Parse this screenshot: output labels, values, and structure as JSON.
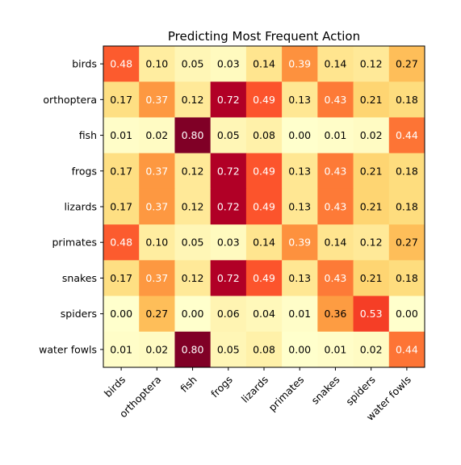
{
  "chart_data": {
    "type": "heatmap",
    "title": "Predicting Most Frequent Action",
    "xlabel": "",
    "ylabel": "",
    "rows": [
      "birds",
      "orthoptera",
      "fish",
      "frogs",
      "lizards",
      "primates",
      "snakes",
      "spiders",
      "water fowls"
    ],
    "columns": [
      "birds",
      "orthoptera",
      "fish",
      "frogs",
      "lizards",
      "primates",
      "snakes",
      "spiders",
      "water fowls"
    ],
    "values": [
      [
        0.48,
        0.1,
        0.05,
        0.03,
        0.14,
        0.39,
        0.14,
        0.12,
        0.27
      ],
      [
        0.17,
        0.37,
        0.12,
        0.72,
        0.49,
        0.13,
        0.43,
        0.21,
        0.18
      ],
      [
        0.01,
        0.02,
        0.8,
        0.05,
        0.08,
        0.0,
        0.01,
        0.02,
        0.44
      ],
      [
        0.17,
        0.37,
        0.12,
        0.72,
        0.49,
        0.13,
        0.43,
        0.21,
        0.18
      ],
      [
        0.17,
        0.37,
        0.12,
        0.72,
        0.49,
        0.13,
        0.43,
        0.21,
        0.18
      ],
      [
        0.48,
        0.1,
        0.05,
        0.03,
        0.14,
        0.39,
        0.14,
        0.12,
        0.27
      ],
      [
        0.17,
        0.37,
        0.12,
        0.72,
        0.49,
        0.13,
        0.43,
        0.21,
        0.18
      ],
      [
        0.0,
        0.27,
        0.0,
        0.06,
        0.04,
        0.01,
        0.36,
        0.53,
        0.0
      ],
      [
        0.01,
        0.02,
        0.8,
        0.05,
        0.08,
        0.0,
        0.01,
        0.02,
        0.44
      ]
    ],
    "value_range": [
      0,
      0.8
    ],
    "colormap": "YlOrRd",
    "colorbar": false,
    "grid": false
  }
}
